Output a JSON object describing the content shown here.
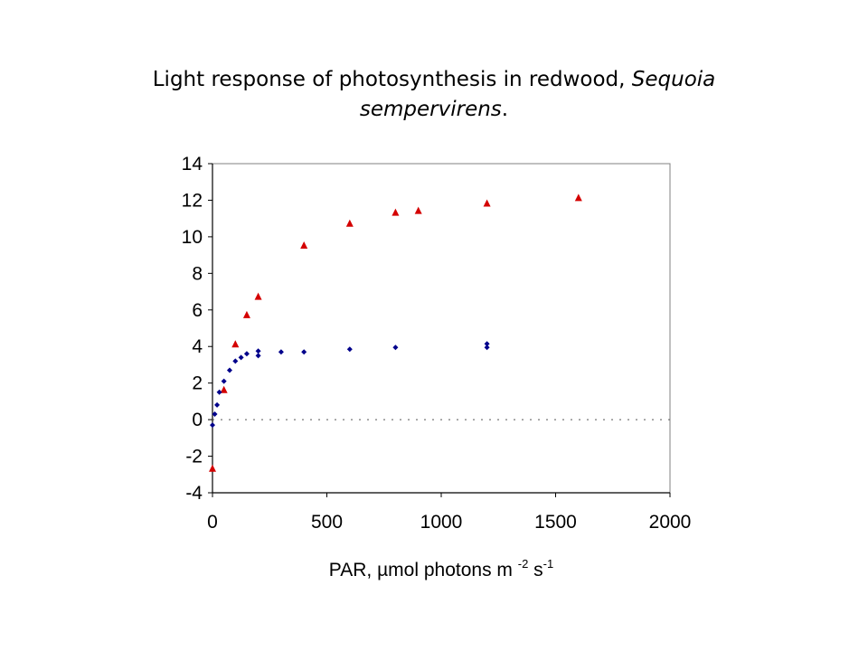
{
  "title": {
    "text_plain": "Light response of photosynthesis in redwood, ",
    "text_italic_1": "Sequoia",
    "text_italic_2": "sempervirens",
    "text_end": "."
  },
  "chart_data": {
    "type": "scatter",
    "title": "Light response of photosynthesis in redwood, Sequoia sempervirens.",
    "xlabel": "PAR,  µmol photons m -2 s-1",
    "ylabel": "",
    "xlim": [
      0,
      2000
    ],
    "ylim": [
      -4,
      14
    ],
    "x_ticks": [
      "0",
      "500",
      "1000",
      "1500",
      "2000"
    ],
    "y_ticks": [
      "-4",
      "-2",
      "0",
      "2",
      "4",
      "6",
      "8",
      "10",
      "12",
      "14"
    ],
    "grid": false,
    "zero_reference_line": "dotted",
    "series": [
      {
        "marker": "triangle",
        "color": "#d40000",
        "points": [
          {
            "x": 0,
            "y": -2.7
          },
          {
            "x": 50,
            "y": 1.6
          },
          {
            "x": 100,
            "y": 4.1
          },
          {
            "x": 150,
            "y": 5.7
          },
          {
            "x": 200,
            "y": 6.7
          },
          {
            "x": 400,
            "y": 9.5
          },
          {
            "x": 600,
            "y": 10.7
          },
          {
            "x": 800,
            "y": 11.3
          },
          {
            "x": 900,
            "y": 11.4
          },
          {
            "x": 1200,
            "y": 11.8
          },
          {
            "x": 1600,
            "y": 12.1
          }
        ]
      },
      {
        "marker": "diamond",
        "color": "#00008b",
        "points": [
          {
            "x": 0,
            "y": -0.3
          },
          {
            "x": 10,
            "y": 0.3
          },
          {
            "x": 20,
            "y": 0.8
          },
          {
            "x": 30,
            "y": 1.5
          },
          {
            "x": 50,
            "y": 2.1
          },
          {
            "x": 75,
            "y": 2.7
          },
          {
            "x": 100,
            "y": 3.2
          },
          {
            "x": 125,
            "y": 3.4
          },
          {
            "x": 150,
            "y": 3.6
          },
          {
            "x": 200,
            "y": 3.5
          },
          {
            "x": 200,
            "y": 3.75
          },
          {
            "x": 300,
            "y": 3.7
          },
          {
            "x": 400,
            "y": 3.7
          },
          {
            "x": 600,
            "y": 3.85
          },
          {
            "x": 800,
            "y": 3.95
          },
          {
            "x": 1200,
            "y": 3.95
          },
          {
            "x": 1200,
            "y": 4.15
          }
        ]
      }
    ]
  }
}
